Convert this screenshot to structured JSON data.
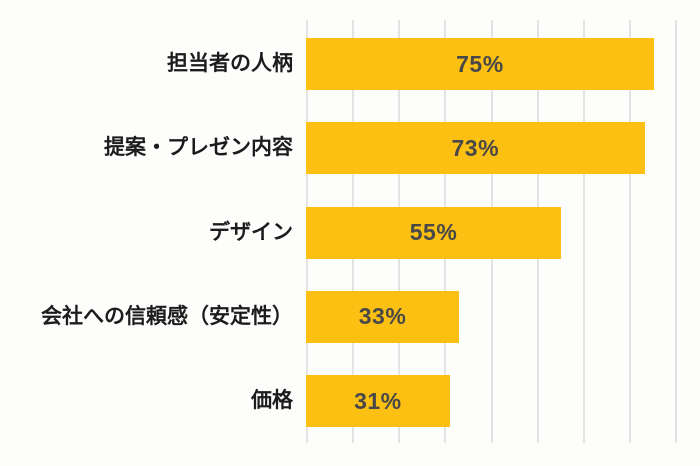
{
  "page": {
    "background_color": "#FDFDFB"
  },
  "chart_data": {
    "type": "bar",
    "orientation": "horizontal",
    "title": "",
    "xlabel": "",
    "ylabel": "",
    "categories": [
      "担当者の人柄",
      "提案・プレゼン内容",
      "デザイン",
      "会社への信頼感（安定性）",
      "価格"
    ],
    "values": [
      75,
      73,
      55,
      33,
      31
    ],
    "value_labels": [
      "75%",
      "73%",
      "55%",
      "33%",
      "31%"
    ],
    "xlim": [
      0,
      80
    ],
    "gridline_interval": 10,
    "grid": true,
    "legend": false,
    "bar_color": "#FCC013",
    "value_label_color": "#484848",
    "category_label_color": "#1C1C1C",
    "gridline_color": "#E3E3E3"
  }
}
